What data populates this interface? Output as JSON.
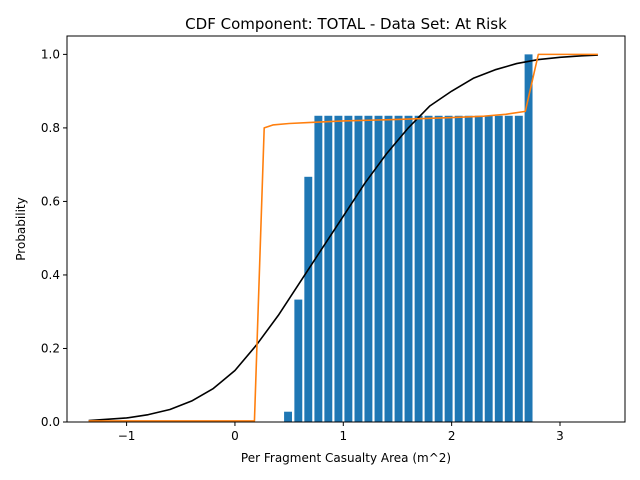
{
  "chart_data": {
    "type": "bar",
    "title": "CDF Component: TOTAL - Data Set: At Risk",
    "xlabel": "Per Fragment Casualty Area (m^2)",
    "ylabel": "Probability",
    "xlim": [
      -1.55,
      3.6
    ],
    "ylim": [
      0,
      1.05
    ],
    "xticks": [
      -1,
      0,
      1,
      2,
      3
    ],
    "yticks": [
      0.0,
      0.2,
      0.4,
      0.6,
      0.8,
      1.0
    ],
    "xtick_labels": [
      "−1",
      "0",
      "1",
      "2",
      "3"
    ],
    "ytick_labels": [
      "0.0",
      "0.2",
      "0.4",
      "0.6",
      "0.8",
      "1.0"
    ],
    "grid": false,
    "legend": "none",
    "bars": {
      "color": "#1f77b4",
      "width": 0.073,
      "x": [
        0.49,
        0.585,
        0.677,
        0.77,
        0.862,
        0.955,
        1.047,
        1.14,
        1.232,
        1.325,
        1.417,
        1.51,
        1.602,
        1.695,
        1.787,
        1.88,
        1.972,
        2.065,
        2.157,
        2.25,
        2.342,
        2.435,
        2.527,
        2.62,
        2.71
      ],
      "values": [
        0.028,
        0.333,
        0.667,
        0.833,
        0.833,
        0.833,
        0.833,
        0.833,
        0.833,
        0.833,
        0.833,
        0.833,
        0.833,
        0.833,
        0.833,
        0.833,
        0.833,
        0.833,
        0.833,
        0.833,
        0.833,
        0.833,
        0.833,
        0.833,
        1.0
      ]
    },
    "series": [
      {
        "type": "line",
        "color": "#000000",
        "x": [
          -1.35,
          -1.0,
          -0.8,
          -0.6,
          -0.4,
          -0.2,
          0.0,
          0.2,
          0.4,
          0.6,
          0.8,
          1.0,
          1.2,
          1.4,
          1.6,
          1.8,
          2.0,
          2.2,
          2.4,
          2.6,
          2.8,
          3.0,
          3.2,
          3.35
        ],
        "values": [
          0.004,
          0.011,
          0.02,
          0.034,
          0.057,
          0.091,
          0.14,
          0.21,
          0.29,
          0.38,
          0.47,
          0.56,
          0.65,
          0.73,
          0.8,
          0.86,
          0.9,
          0.935,
          0.958,
          0.975,
          0.986,
          0.992,
          0.996,
          0.998
        ]
      },
      {
        "type": "line",
        "color": "#ff7f0e",
        "x": [
          -1.35,
          0.0,
          0.18,
          0.27,
          0.35,
          0.5,
          0.7,
          1.0,
          1.5,
          2.0,
          2.3,
          2.5,
          2.68,
          2.8,
          3.35
        ],
        "values": [
          0.003,
          0.003,
          0.003,
          0.8,
          0.808,
          0.812,
          0.815,
          0.819,
          0.823,
          0.828,
          0.832,
          0.837,
          0.845,
          1.0,
          1.0
        ]
      }
    ]
  }
}
